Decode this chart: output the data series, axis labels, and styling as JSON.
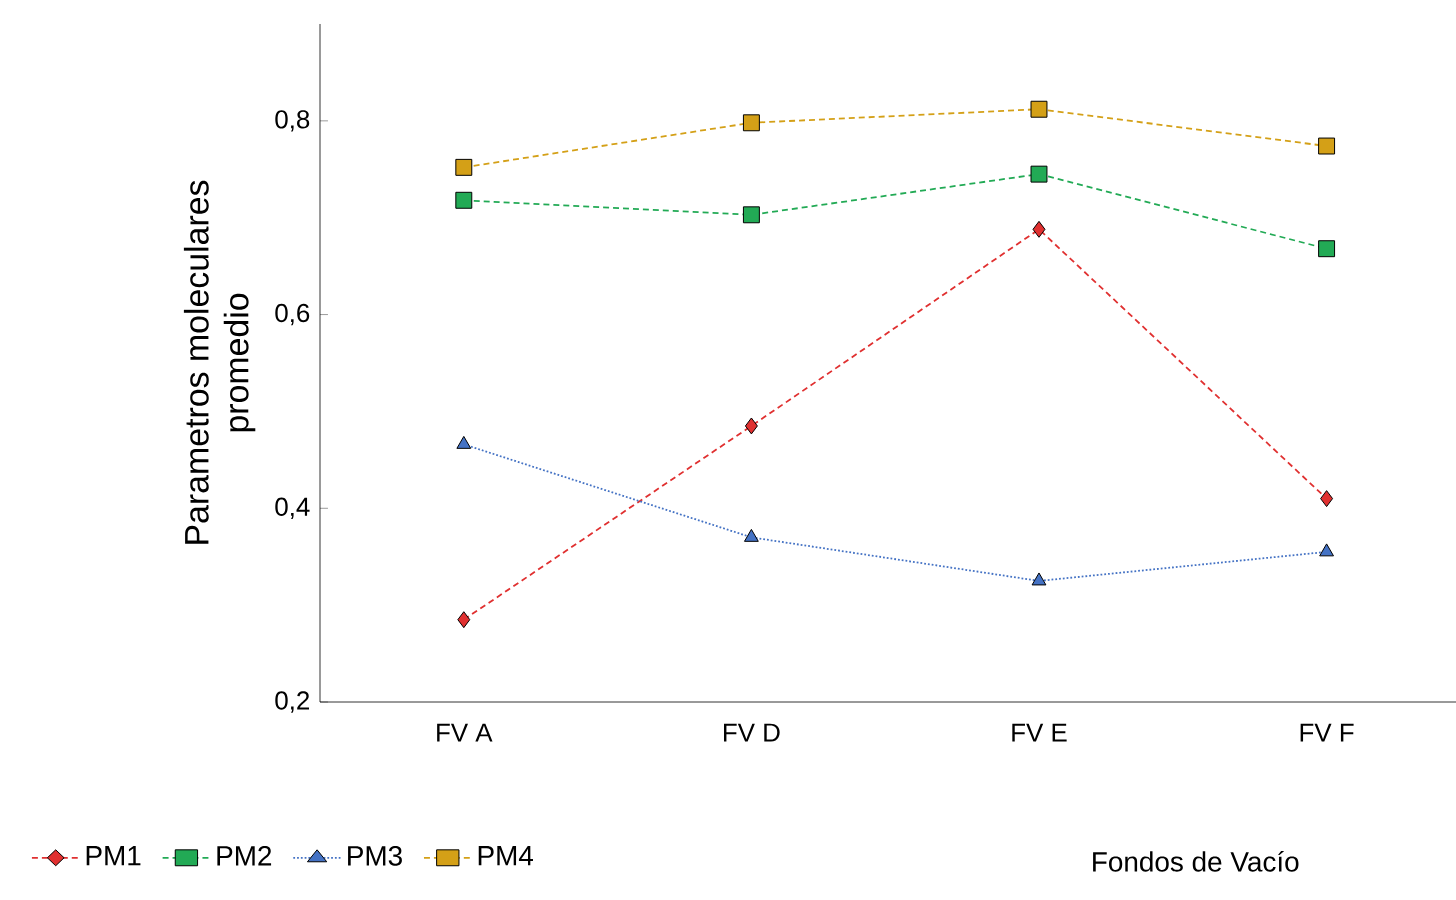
{
  "chart_data": {
    "type": "line",
    "xlabel": "Fondos de Vacío",
    "ylabel": "Parametros moleculares\npromedio",
    "categories": [
      "FV A",
      "FV D",
      "FV E",
      "FV F"
    ],
    "series": [
      {
        "name": "PM1",
        "color": "#e03030",
        "values": [
          0.285,
          0.485,
          0.688,
          0.41
        ],
        "marker": "diamond",
        "line_style": "dashed"
      },
      {
        "name": "PM2",
        "color": "#22aa55",
        "values": [
          0.718,
          0.703,
          0.745,
          0.668
        ],
        "marker": "square",
        "line_style": "dashed"
      },
      {
        "name": "PM3",
        "color": "#4472c4",
        "values": [
          0.466,
          0.37,
          0.325,
          0.355
        ],
        "marker": "triangle",
        "line_style": "dotted"
      },
      {
        "name": "PM4",
        "color": "#d4a017",
        "values": [
          0.752,
          0.798,
          0.812,
          0.774
        ],
        "marker": "square",
        "line_style": "dashed"
      }
    ],
    "ylim": [
      0.2,
      0.9
    ],
    "yticks": [
      {
        "value": 0.2,
        "label": "0,2"
      },
      {
        "value": 0.4,
        "label": "0,4"
      },
      {
        "value": 0.6,
        "label": "0,6"
      },
      {
        "value": 0.8,
        "label": "0,8"
      }
    ],
    "grid": false,
    "legend": "bottom"
  }
}
